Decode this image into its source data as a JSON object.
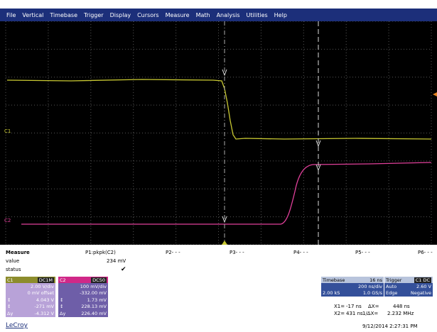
{
  "menu": [
    "File",
    "Vertical",
    "Timebase",
    "Trigger",
    "Display",
    "Cursors",
    "Measure",
    "Math",
    "Analysis",
    "Utilities",
    "Help"
  ],
  "grid": {
    "channel_labels": [
      "C1",
      "C2"
    ]
  },
  "measure": {
    "label": "Measure",
    "params": [
      "P1:pkpk(C2)",
      "P2- - -",
      "P3- - -",
      "P4- - -",
      "P5- - -",
      "P6- - -"
    ],
    "value_label": "value",
    "value": "234 mV",
    "status_label": "status",
    "status": "✔"
  },
  "channels": [
    {
      "name": "C1",
      "coupling": "DC1M",
      "scale": "2.00 V/div",
      "offset": "0 mV offset",
      "rows": [
        [
          "↕",
          "4.043 V"
        ],
        [
          "↕",
          "-271 mV"
        ],
        [
          "Δy",
          "-4.312 V"
        ]
      ]
    },
    {
      "name": "C2",
      "coupling": "DC50",
      "scale": "100 mV/div",
      "offset": "-332.00 mV",
      "rows": [
        [
          "↕",
          "1.73 mV"
        ],
        [
          "↕",
          "228.13 mV"
        ],
        [
          "Δy",
          "226.40 mV"
        ]
      ]
    }
  ],
  "timebase": {
    "label": "Timebase",
    "delay": "16 ns",
    "scale": "200 ns/div",
    "samples": "2.00 kS",
    "rate": "1.0 GS/s"
  },
  "trigger": {
    "label": "Trigger",
    "source": "C1 DC",
    "mode": "Auto",
    "level": "2.60 V",
    "type": "Edge",
    "slope": "Negative"
  },
  "cursors": {
    "x1_label": "X1=",
    "x1": "-17 ns",
    "dx_label": "ΔX=",
    "dx": "448 ns",
    "x2_label": "X2=",
    "x2": "431 ns",
    "inv_dx_label": "1/ΔX=",
    "inv_dx": "2.232 MHz"
  },
  "brand": "LeCroy",
  "timestamp": "9/12/2014 2:27:31 PM"
}
